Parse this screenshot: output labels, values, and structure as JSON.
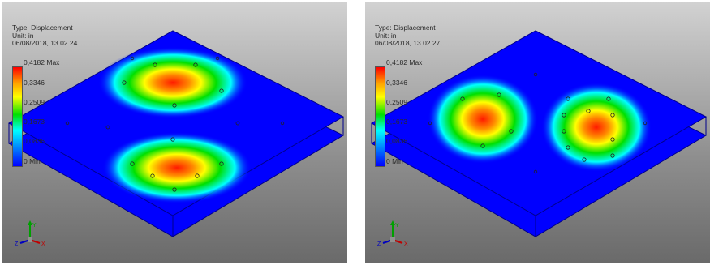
{
  "panels": [
    {
      "info": {
        "type": "Type: Displacement",
        "unit": "Unit: in",
        "timestamp": "06/08/2018, 13.02.24"
      },
      "legend": [
        "0,4182 Max",
        "0,3346",
        "0,2509",
        "0,1673",
        "0,0836",
        "0 Min"
      ],
      "mode": "two-lobe-front-back"
    },
    {
      "info": {
        "type": "Type: Displacement",
        "unit": "Unit: in",
        "timestamp": "06/08/2018, 13.02.27"
      },
      "legend": [
        "0,4182 Max",
        "0,3346",
        "0,2509",
        "0,1673",
        "0,0836",
        "0 Min"
      ],
      "mode": "two-lobe-left-right"
    }
  ],
  "triad": {
    "y": "Y",
    "z": "Z",
    "x": "X"
  },
  "colors": {
    "plate": "#0000ff",
    "edge": "#0000c8",
    "hot": "#ff0000"
  }
}
